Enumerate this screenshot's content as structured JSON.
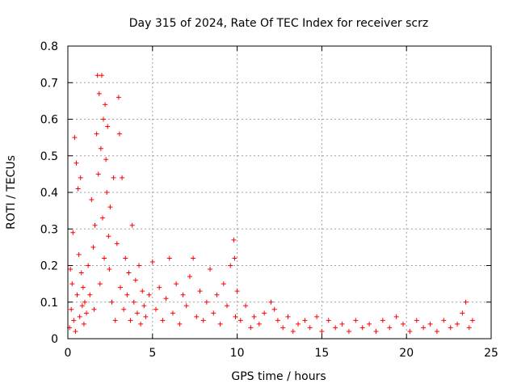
{
  "chart_data": {
    "type": "scatter",
    "title": "Day 315 of 2024, Rate Of TEC Index for receiver scrz",
    "xlabel": "GPS time / hours",
    "ylabel": "ROTI / TECUs",
    "xlim": [
      0,
      25
    ],
    "ylim": [
      0,
      0.8
    ],
    "xticks": [
      0,
      5,
      10,
      15,
      20,
      25
    ],
    "yticks": [
      0,
      0.1,
      0.2,
      0.3,
      0.4,
      0.5,
      0.6,
      0.7,
      0.8
    ],
    "grid": true,
    "marker": "+",
    "color": "#ff0000",
    "series": [
      {
        "name": "ROTI",
        "note": "dense ~24h of samples; representative points read from the plot",
        "points": [
          [
            0.1,
            0.03
          ],
          [
            0.15,
            0.19
          ],
          [
            0.2,
            0.08
          ],
          [
            0.25,
            0.15
          ],
          [
            0.3,
            0.29
          ],
          [
            0.35,
            0.05
          ],
          [
            0.4,
            0.55
          ],
          [
            0.45,
            0.02
          ],
          [
            0.5,
            0.48
          ],
          [
            0.55,
            0.12
          ],
          [
            0.6,
            0.41
          ],
          [
            0.65,
            0.23
          ],
          [
            0.7,
            0.06
          ],
          [
            0.75,
            0.44
          ],
          [
            0.8,
            0.18
          ],
          [
            0.85,
            0.09
          ],
          [
            0.9,
            0.14
          ],
          [
            0.95,
            0.04
          ],
          [
            1.0,
            0.1
          ],
          [
            1.1,
            0.07
          ],
          [
            1.2,
            0.2
          ],
          [
            1.3,
            0.12
          ],
          [
            1.4,
            0.38
          ],
          [
            1.5,
            0.25
          ],
          [
            1.55,
            0.08
          ],
          [
            1.6,
            0.31
          ],
          [
            1.7,
            0.56
          ],
          [
            1.75,
            0.72
          ],
          [
            1.8,
            0.45
          ],
          [
            1.85,
            0.67
          ],
          [
            1.9,
            0.15
          ],
          [
            1.95,
            0.52
          ],
          [
            2.0,
            0.72
          ],
          [
            2.05,
            0.33
          ],
          [
            2.1,
            0.6
          ],
          [
            2.15,
            0.22
          ],
          [
            2.2,
            0.64
          ],
          [
            2.25,
            0.49
          ],
          [
            2.3,
            0.4
          ],
          [
            2.35,
            0.58
          ],
          [
            2.4,
            0.28
          ],
          [
            2.45,
            0.19
          ],
          [
            2.5,
            0.36
          ],
          [
            2.6,
            0.1
          ],
          [
            2.7,
            0.44
          ],
          [
            2.8,
            0.05
          ],
          [
            2.9,
            0.26
          ],
          [
            3.0,
            0.66
          ],
          [
            3.05,
            0.56
          ],
          [
            3.1,
            0.14
          ],
          [
            3.2,
            0.44
          ],
          [
            3.3,
            0.08
          ],
          [
            3.4,
            0.22
          ],
          [
            3.5,
            0.12
          ],
          [
            3.6,
            0.18
          ],
          [
            3.7,
            0.05
          ],
          [
            3.8,
            0.31
          ],
          [
            3.9,
            0.1
          ],
          [
            4.0,
            0.16
          ],
          [
            4.1,
            0.07
          ],
          [
            4.2,
            0.2
          ],
          [
            4.3,
            0.04
          ],
          [
            4.4,
            0.13
          ],
          [
            4.5,
            0.09
          ],
          [
            4.6,
            0.06
          ],
          [
            4.8,
            0.12
          ],
          [
            5.0,
            0.21
          ],
          [
            5.2,
            0.08
          ],
          [
            5.4,
            0.14
          ],
          [
            5.6,
            0.05
          ],
          [
            5.8,
            0.11
          ],
          [
            6.0,
            0.22
          ],
          [
            6.2,
            0.07
          ],
          [
            6.4,
            0.15
          ],
          [
            6.6,
            0.04
          ],
          [
            6.8,
            0.12
          ],
          [
            7.0,
            0.09
          ],
          [
            7.2,
            0.17
          ],
          [
            7.4,
            0.22
          ],
          [
            7.6,
            0.06
          ],
          [
            7.8,
            0.13
          ],
          [
            8.0,
            0.05
          ],
          [
            8.2,
            0.1
          ],
          [
            8.4,
            0.19
          ],
          [
            8.6,
            0.07
          ],
          [
            8.8,
            0.12
          ],
          [
            9.0,
            0.04
          ],
          [
            9.2,
            0.15
          ],
          [
            9.4,
            0.09
          ],
          [
            9.6,
            0.2
          ],
          [
            9.8,
            0.27
          ],
          [
            9.85,
            0.22
          ],
          [
            9.9,
            0.06
          ],
          [
            10.0,
            0.13
          ],
          [
            10.2,
            0.05
          ],
          [
            10.5,
            0.09
          ],
          [
            10.8,
            0.03
          ],
          [
            11.0,
            0.06
          ],
          [
            11.3,
            0.04
          ],
          [
            11.6,
            0.07
          ],
          [
            12.0,
            0.1
          ],
          [
            12.2,
            0.08
          ],
          [
            12.4,
            0.05
          ],
          [
            12.7,
            0.03
          ],
          [
            13.0,
            0.06
          ],
          [
            13.3,
            0.02
          ],
          [
            13.6,
            0.04
          ],
          [
            14.0,
            0.05
          ],
          [
            14.3,
            0.03
          ],
          [
            14.7,
            0.06
          ],
          [
            15.0,
            0.02
          ],
          [
            15.4,
            0.05
          ],
          [
            15.8,
            0.03
          ],
          [
            16.2,
            0.04
          ],
          [
            16.6,
            0.02
          ],
          [
            17.0,
            0.05
          ],
          [
            17.4,
            0.03
          ],
          [
            17.8,
            0.04
          ],
          [
            18.2,
            0.02
          ],
          [
            18.6,
            0.05
          ],
          [
            19.0,
            0.03
          ],
          [
            19.4,
            0.06
          ],
          [
            19.8,
            0.04
          ],
          [
            20.2,
            0.02
          ],
          [
            20.6,
            0.05
          ],
          [
            21.0,
            0.03
          ],
          [
            21.4,
            0.04
          ],
          [
            21.8,
            0.02
          ],
          [
            22.2,
            0.05
          ],
          [
            22.6,
            0.03
          ],
          [
            23.0,
            0.04
          ],
          [
            23.3,
            0.07
          ],
          [
            23.5,
            0.1
          ],
          [
            23.7,
            0.03
          ],
          [
            23.9,
            0.05
          ]
        ]
      }
    ]
  }
}
